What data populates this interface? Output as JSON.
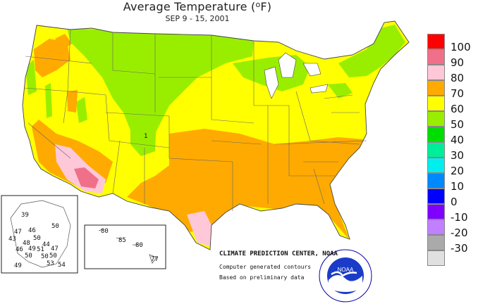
{
  "title_main": "Average Temperature (",
  "title_unit": "o",
  "title_end": "F)",
  "subtitle": "SEP 9 - 15, 2001",
  "legend": {
    "items": [
      {
        "label": "100",
        "color": "#ff0000"
      },
      {
        "label": "90",
        "color": "#f0708a"
      },
      {
        "label": "80",
        "color": "#ffc8d8"
      },
      {
        "label": "70",
        "color": "#ffaa00"
      },
      {
        "label": "60",
        "color": "#ffff00"
      },
      {
        "label": "50",
        "color": "#99ee00"
      },
      {
        "label": "40",
        "color": "#00dd00"
      },
      {
        "label": "30",
        "color": "#00ee99"
      },
      {
        "label": "20",
        "color": "#00eeee"
      },
      {
        "label": "10",
        "color": "#0088ff"
      },
      {
        "label": "0",
        "color": "#0000ff"
      },
      {
        "label": "-10",
        "color": "#8000ff"
      },
      {
        "label": "-20",
        "color": "#c080ff"
      },
      {
        "label": "-30",
        "color": "#aaaaaa"
      },
      {
        "label": "",
        "color": "#e0e0e0"
      }
    ]
  },
  "map_labels": {
    "contour_label": "1"
  },
  "alaska_values": [
    "39",
    "50",
    "47",
    "46",
    "50",
    "43",
    "48",
    "44",
    "46",
    "49",
    "51",
    "47",
    "50",
    "50",
    "50",
    "49",
    "53",
    "54"
  ],
  "hawaii_values": [
    "80",
    "85",
    "80",
    "77"
  ],
  "credits": {
    "line1": "CLIMATE PREDICTION CENTER, NOAA",
    "line2": "Computer generated contours",
    "line3": "Based on preliminary data"
  },
  "logo": {
    "text": "NOAA",
    "ring_top": "NATIONAL OCEANIC AND ATMOSPHERIC ADMINISTRATION",
    "ring_bottom": "U.S. DEPARTMENT OF COMMERCE"
  }
}
